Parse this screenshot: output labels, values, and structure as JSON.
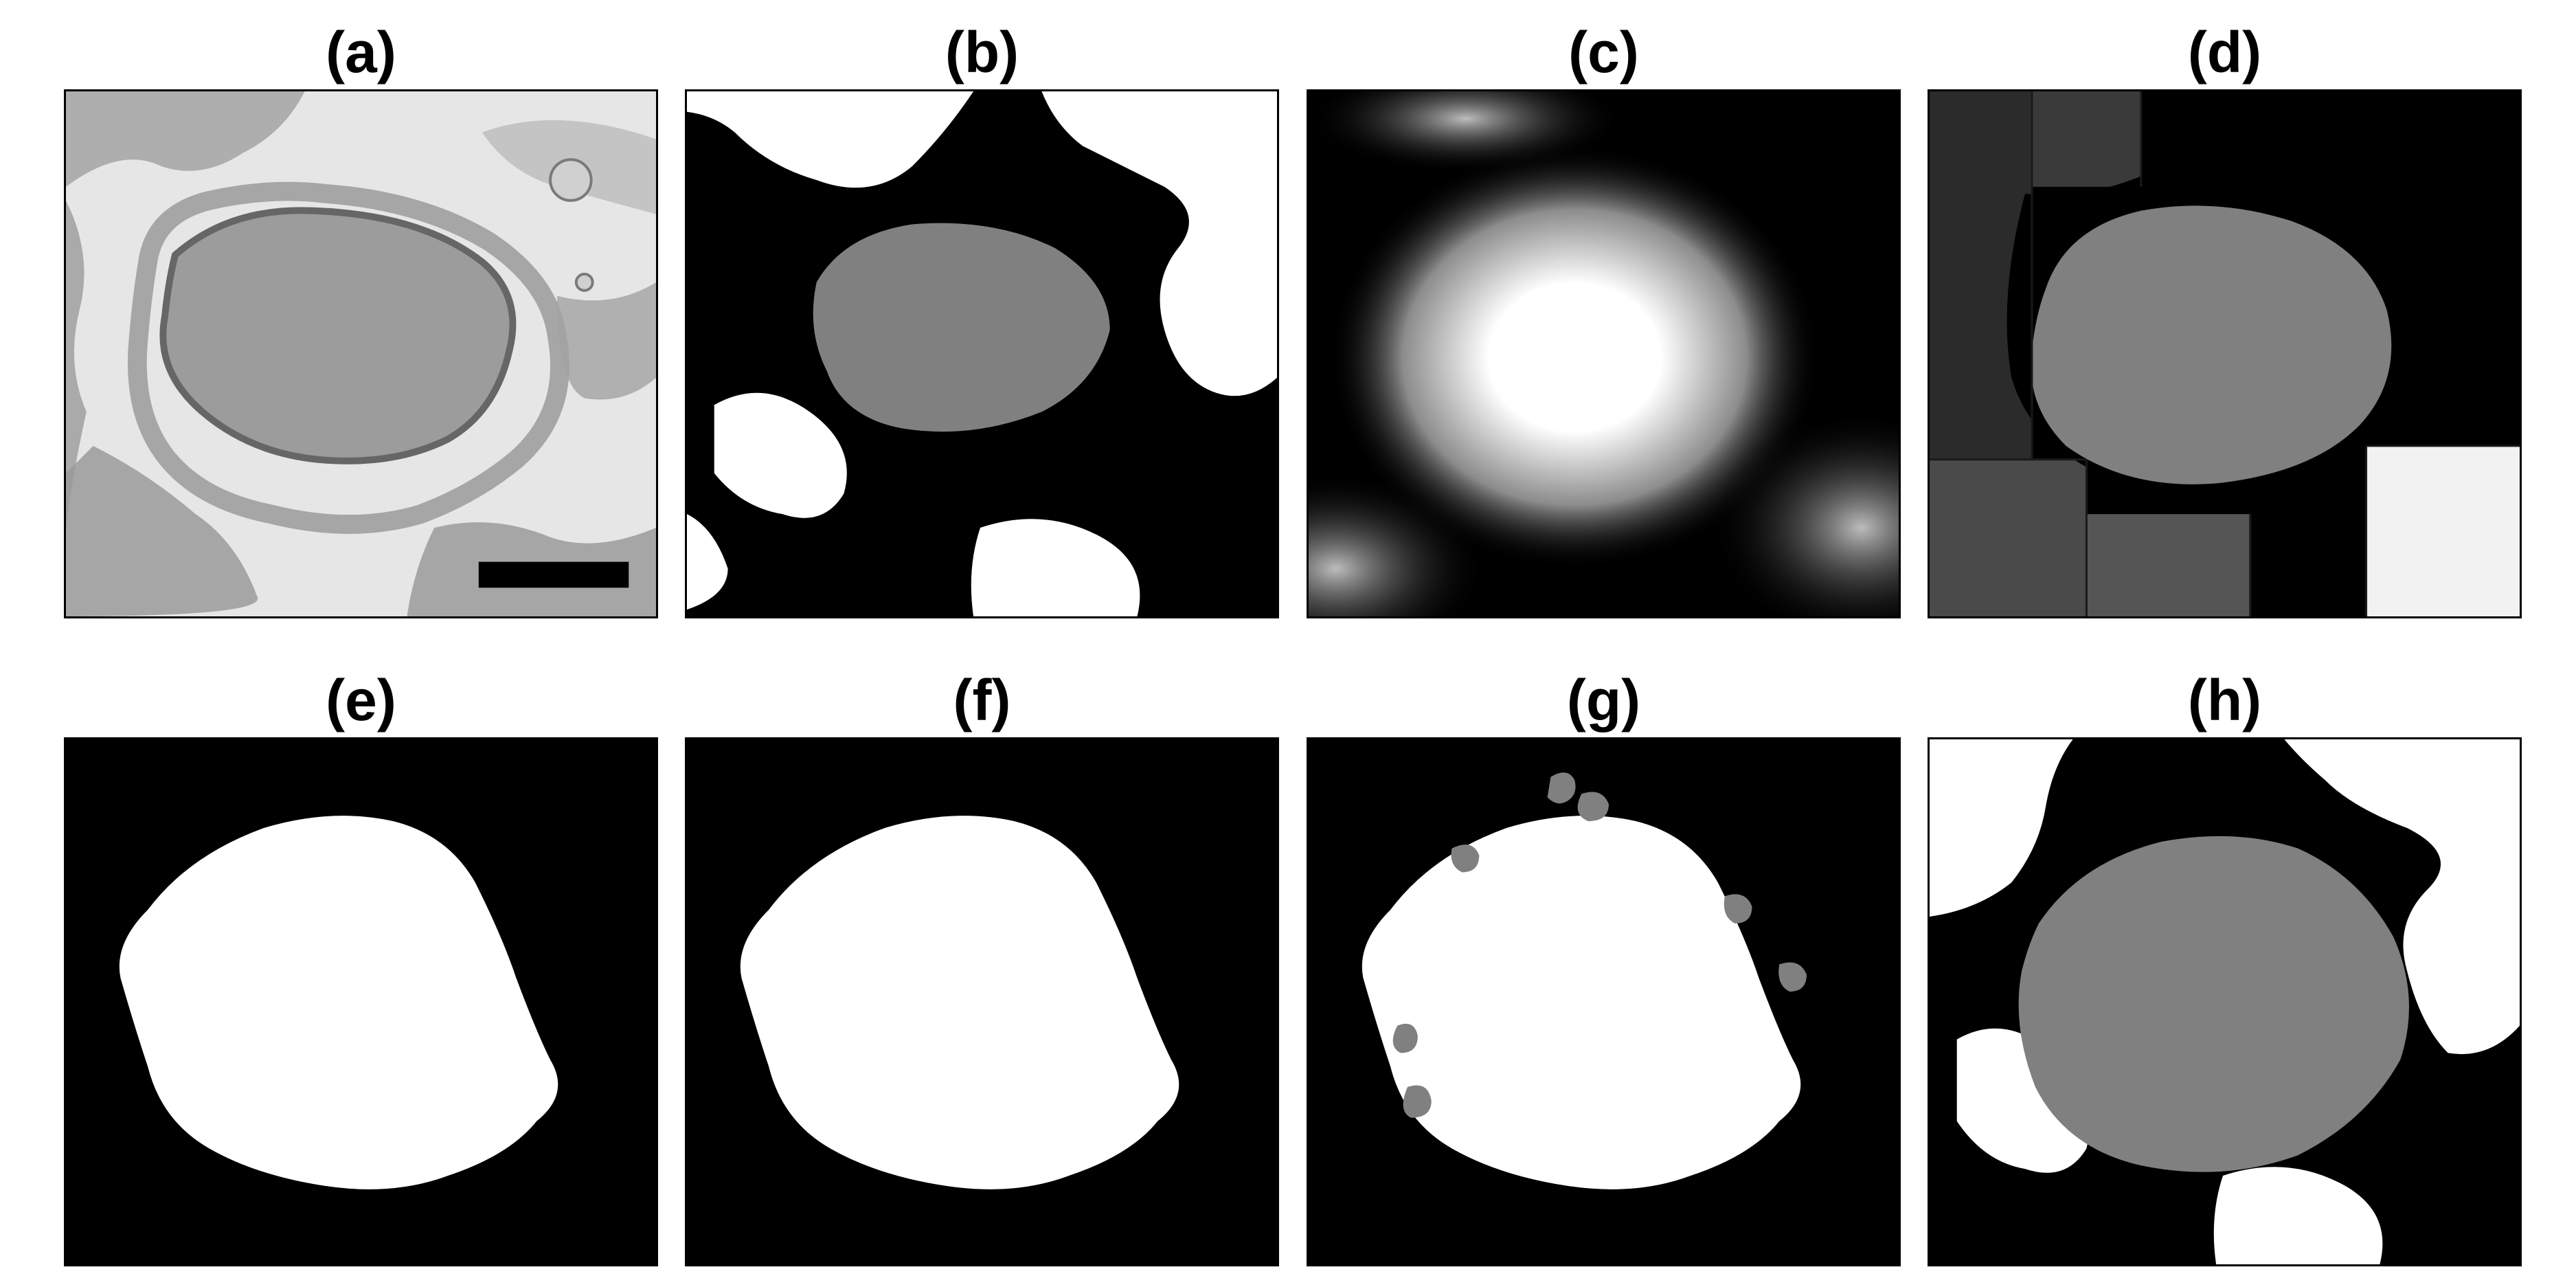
{
  "figure": {
    "panels": [
      {
        "label": "(a)",
        "content": "microscopy-image"
      },
      {
        "label": "(b)",
        "content": "segmentation-mask"
      },
      {
        "label": "(c)",
        "content": "distance-map"
      },
      {
        "label": "(d)",
        "content": "region-partition"
      },
      {
        "label": "(e)",
        "content": "binary-mask"
      },
      {
        "label": "(f)",
        "content": "binary-mask"
      },
      {
        "label": "(g)",
        "content": "binary-mask-with-gray-regions"
      },
      {
        "label": "(h)",
        "content": "segmentation-mask"
      }
    ]
  },
  "colors": {
    "background": "#ffffff",
    "mask_white": "#ffffff",
    "mask_black": "#000000",
    "mask_gray": "#808080",
    "micrograph_base": "#d8d8d8",
    "micrograph_cell": "#9a9a9a"
  }
}
